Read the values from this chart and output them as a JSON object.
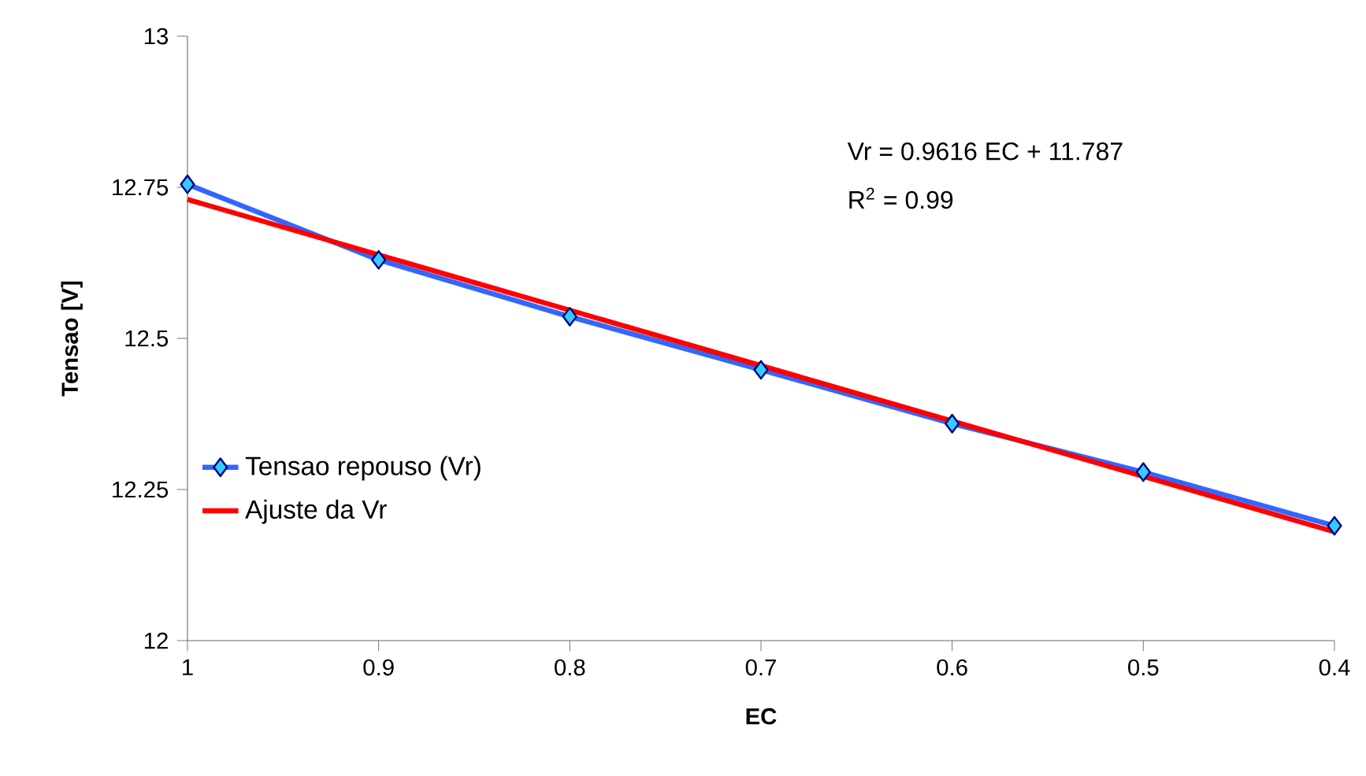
{
  "chart_data": {
    "type": "line",
    "xlabel": "EC",
    "ylabel": "Tensao  [V]",
    "x": [
      1,
      0.9,
      0.8,
      0.7,
      0.6,
      0.5,
      0.4
    ],
    "series": [
      {
        "name": "Tensao repouso (Vr)",
        "color": "#3366ff",
        "values": [
          12.755,
          12.63,
          12.536,
          12.448,
          12.359,
          12.279,
          12.19
        ],
        "marker": "diamond"
      },
      {
        "name": "Ajuste da Vr",
        "color": "#ff0000",
        "x": [
          1,
          0.4
        ],
        "values": [
          12.73,
          12.18
        ],
        "marker": "none"
      }
    ],
    "xlim": [
      1,
      0.4
    ],
    "xticks": [
      1,
      0.9,
      0.8,
      0.7,
      0.6,
      0.5,
      0.4
    ],
    "ylim": [
      12,
      13
    ],
    "yticks": [
      12,
      12.25,
      12.5,
      12.75,
      13
    ],
    "annotations": [
      "Vr = 0.9616 EC + 11.787",
      "R$^{2}$ = 0.99"
    ],
    "legend": "left",
    "grid": false
  }
}
